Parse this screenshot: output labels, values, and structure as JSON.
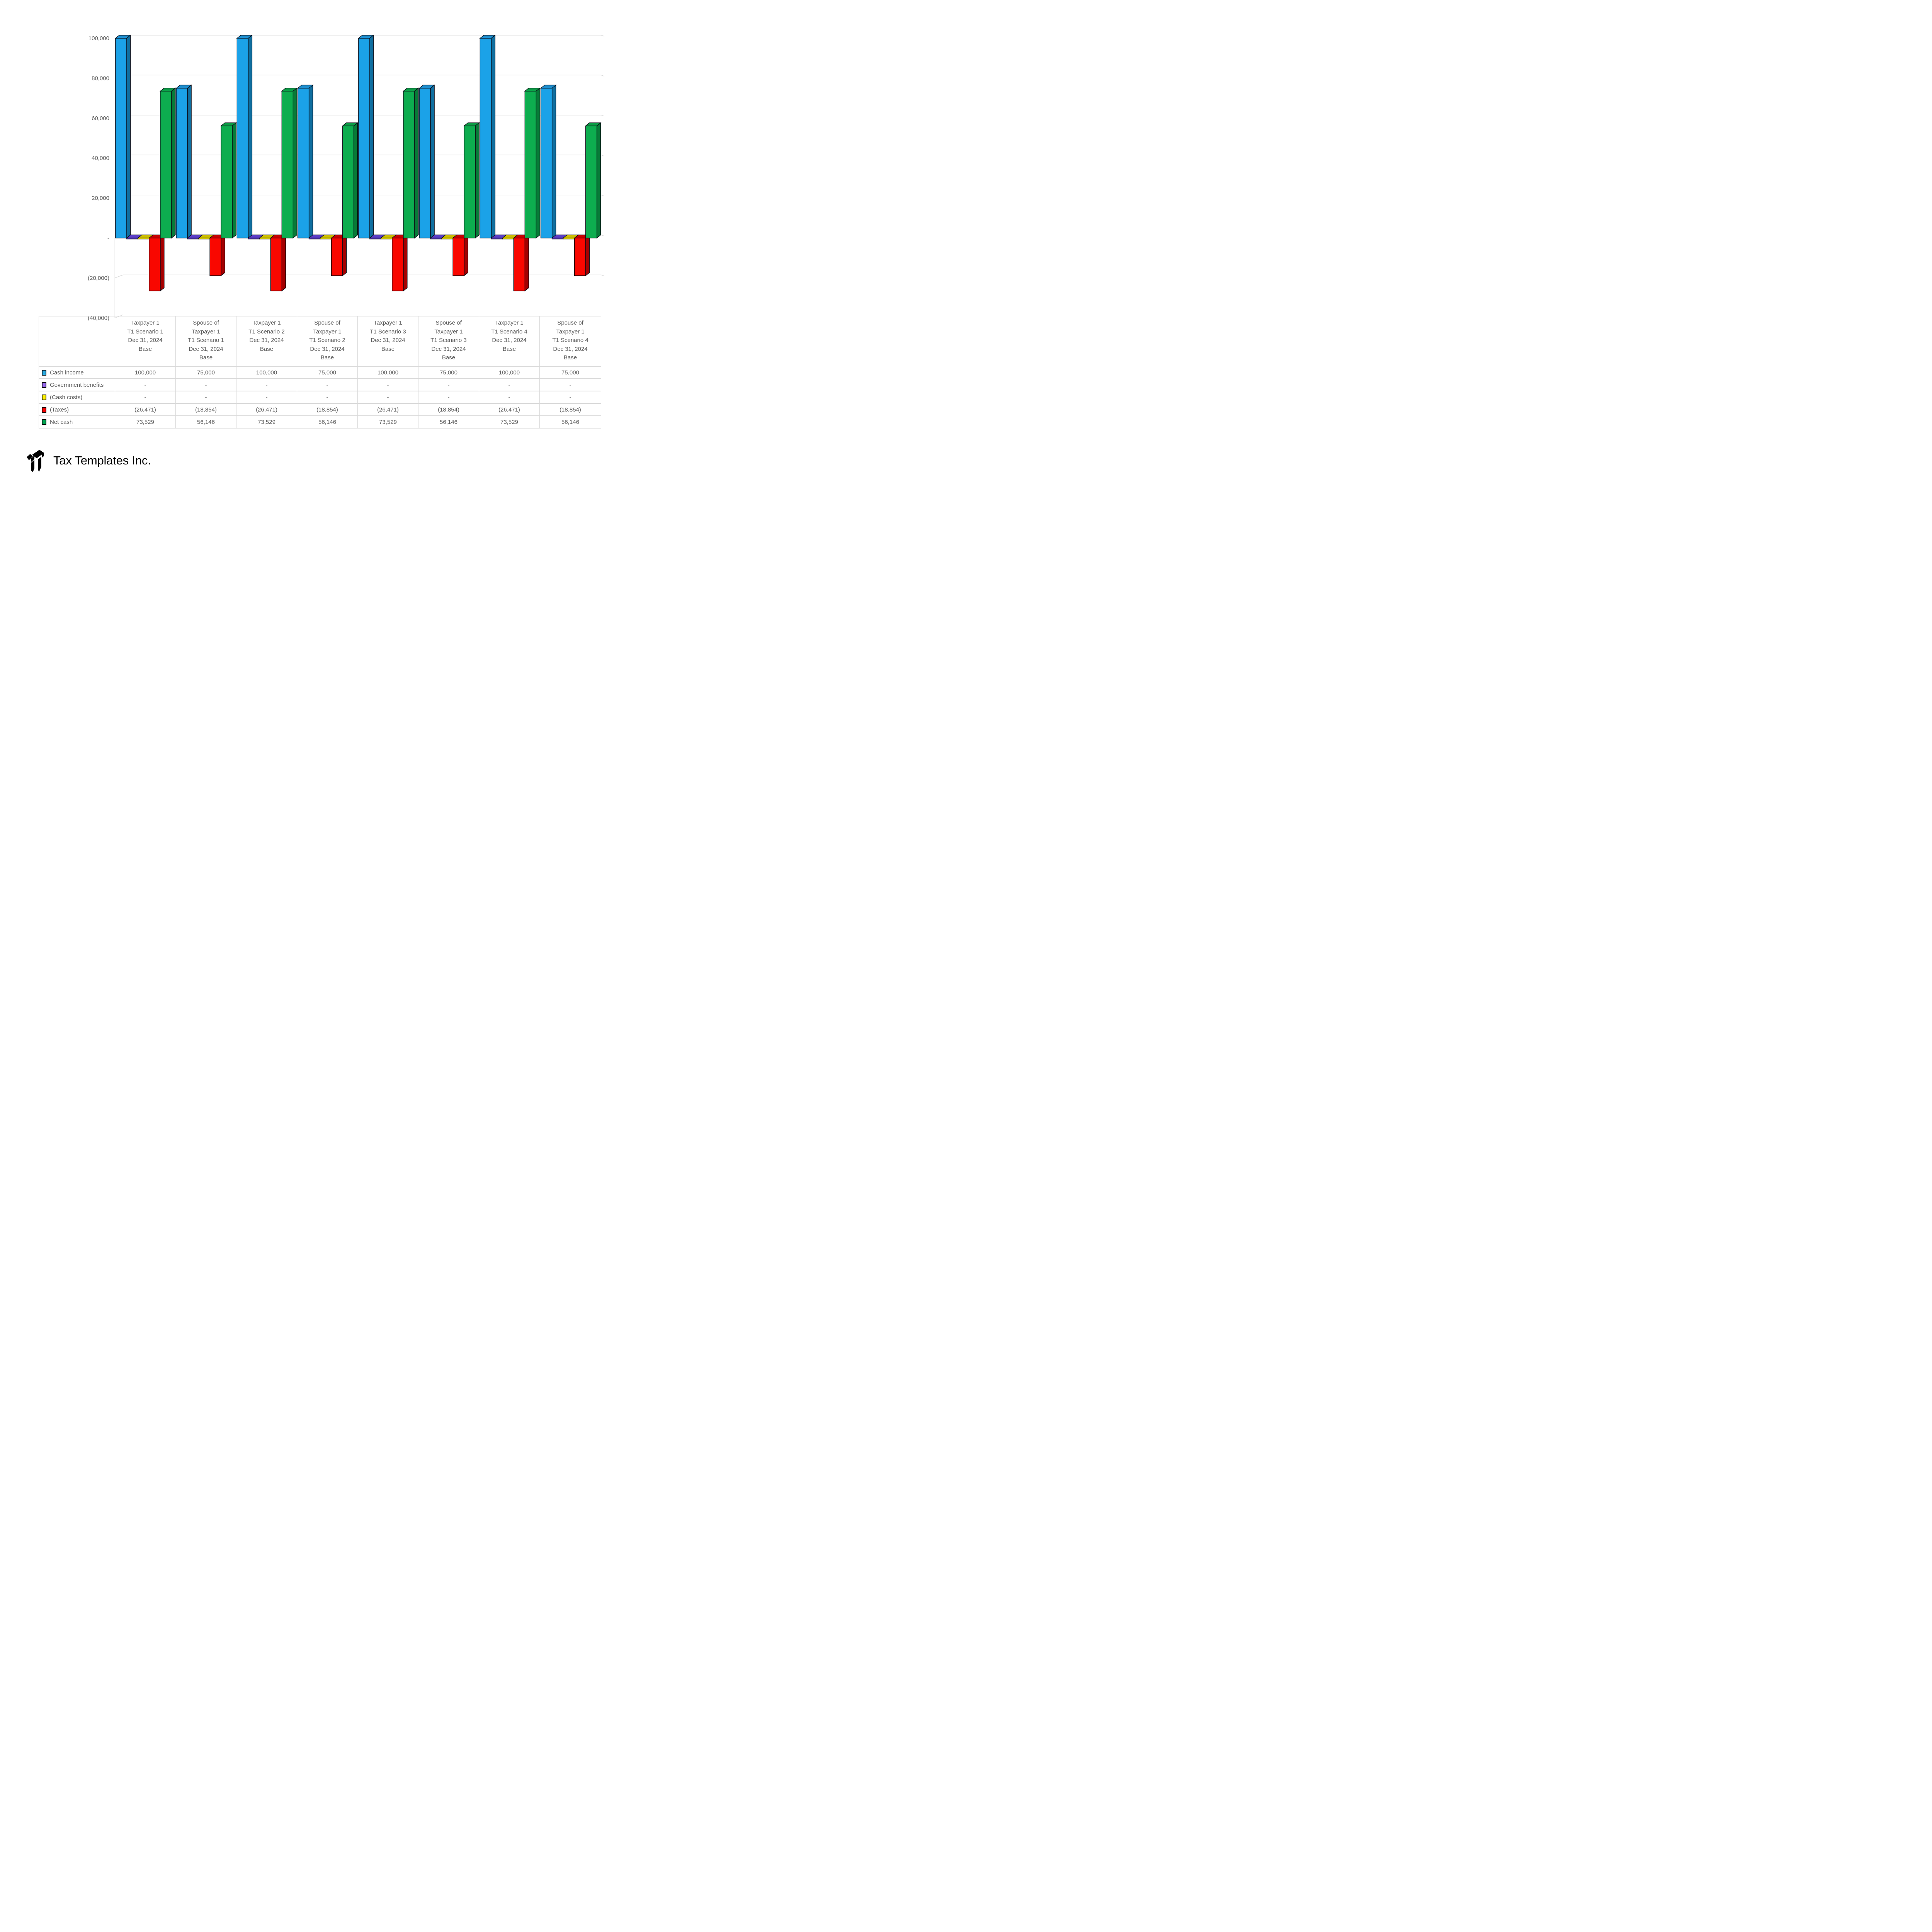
{
  "logo": {
    "company_name": "Tax Templates Inc."
  },
  "colors": {
    "axis_text": "#595959",
    "table_text": "#595959",
    "gridline": "#d7d7d7",
    "table_border": "#d9d9d9",
    "bar_outline": "#0a0a14",
    "background": "#ffffff"
  },
  "chart_data": {
    "type": "bar",
    "subtype": "3d-clustered-column",
    "title": "",
    "xlabel": "",
    "ylabel": "",
    "ylim": [
      -40000,
      100000
    ],
    "grid": true,
    "legend_position": "data-table-keys",
    "categories": [
      [
        "Taxpayer 1",
        "T1 Scenario 1",
        "Dec 31, 2024",
        "Base"
      ],
      [
        "Spouse of",
        "Taxpayer 1",
        "T1 Scenario 1",
        "Dec 31, 2024",
        "Base"
      ],
      [
        "Taxpayer 1",
        "T1 Scenario 2",
        "Dec 31, 2024",
        "Base"
      ],
      [
        "Spouse of",
        "Taxpayer 1",
        "T1 Scenario 2",
        "Dec 31, 2024",
        "Base"
      ],
      [
        "Taxpayer 1",
        "T1 Scenario 3",
        "Dec 31, 2024",
        "Base"
      ],
      [
        "Spouse of",
        "Taxpayer 1",
        "T1 Scenario 3",
        "Dec 31, 2024",
        "Base"
      ],
      [
        "Taxpayer 1",
        "T1 Scenario 4",
        "Dec 31, 2024",
        "Base"
      ],
      [
        "Spouse of",
        "Taxpayer 1",
        "T1 Scenario 4",
        "Dec 31, 2024",
        "Base"
      ]
    ],
    "y_axis": {
      "min": -40000,
      "max": 100000,
      "step": 20000,
      "ticks": [
        {
          "label": "100,000",
          "value": 100000
        },
        {
          "label": "80,000",
          "value": 80000
        },
        {
          "label": "60,000",
          "value": 60000
        },
        {
          "label": "40,000",
          "value": 40000
        },
        {
          "label": "20,000",
          "value": 20000
        },
        {
          "label": "-",
          "value": 0
        },
        {
          "label": "(20,000)",
          "value": -20000
        },
        {
          "label": "(40,000)",
          "value": -40000
        }
      ]
    },
    "series": [
      {
        "name": "Cash income",
        "legend_color": "#29ABE2",
        "faces": {
          "front": "#1BA2E8",
          "top": "#1E8FD0",
          "side": "#0F6FA0"
        },
        "values": [
          100000,
          75000,
          100000,
          75000,
          100000,
          75000,
          100000,
          75000
        ],
        "display": [
          "100,000",
          "75,000",
          "100,000",
          "75,000",
          "100,000",
          "75,000",
          "100,000",
          "75,000"
        ]
      },
      {
        "name": "Government benefits",
        "legend_color": "#9B6BF3",
        "faces": {
          "front": "#4930A8",
          "top": "#5B3EC8",
          "side": "#3A2590"
        },
        "values": [
          0,
          0,
          0,
          0,
          0,
          0,
          0,
          0
        ],
        "display": [
          "-",
          "-",
          "-",
          "-",
          "-",
          "-",
          "-",
          "-"
        ]
      },
      {
        "name": "(Cash costs)",
        "legend_color": "#FFF100",
        "faces": {
          "front": "#F2E600",
          "top": "#CDBE00",
          "side": "#9C9000"
        },
        "values": [
          0,
          0,
          0,
          0,
          0,
          0,
          0,
          0
        ],
        "display": [
          "-",
          "-",
          "-",
          "-",
          "-",
          "-",
          "-",
          "-"
        ]
      },
      {
        "name": "(Taxes)",
        "legend_color": "#FE0000",
        "faces": {
          "front": "#F90700",
          "top": "#C80000",
          "side": "#A40000"
        },
        "values": [
          -26471,
          -18854,
          -26471,
          -18854,
          -26471,
          -18854,
          -26471,
          -18854
        ],
        "display": [
          "(26,471)",
          "(18,854)",
          "(26,471)",
          "(18,854)",
          "(26,471)",
          "(18,854)",
          "(26,471)",
          "(18,854)"
        ]
      },
      {
        "name": "Net cash",
        "legend_color": "#00A651",
        "faces": {
          "front": "#0DAD4F",
          "top": "#0B9B45",
          "side": "#077B38"
        },
        "values": [
          73529,
          56146,
          73529,
          56146,
          73529,
          56146,
          73529,
          56146
        ],
        "display": [
          "73,529",
          "56,146",
          "73,529",
          "56,146",
          "73,529",
          "56,146",
          "73,529",
          "56,146"
        ]
      }
    ]
  }
}
